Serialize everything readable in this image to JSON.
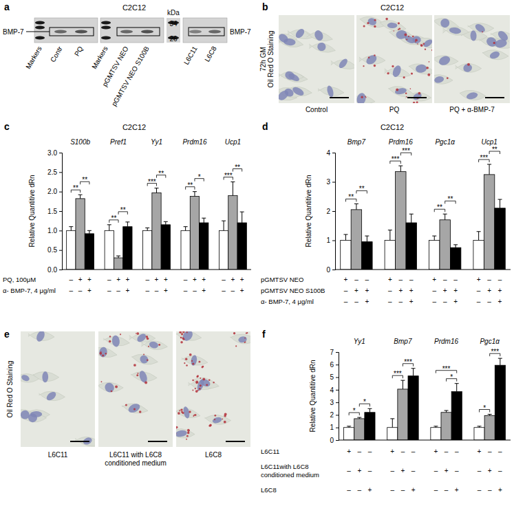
{
  "figure": {
    "panel_labels": [
      "a",
      "b",
      "c",
      "d",
      "e",
      "f"
    ],
    "blot": {
      "title": "C2C12",
      "band_label": "BMP-7",
      "band_label_right": "BMP-7",
      "unit": "kDa",
      "marker_sizes": [
        34,
        26
      ],
      "lanes": [
        [
          "Markers",
          "Contr",
          "PQ"
        ],
        [
          "Markers",
          "pGMTSV NEO",
          "pGMTSV NEO S100B"
        ],
        [
          "L6C11",
          "L6C8"
        ]
      ]
    },
    "micrographs_b": {
      "title": "C2C12",
      "side_label": [
        "72h GM",
        "Oil Red O Staining"
      ],
      "captions": [
        [
          "Control"
        ],
        [
          "PQ"
        ],
        [
          "PQ + α-BMP-7"
        ]
      ]
    },
    "micrographs_e": {
      "side_label": [
        "Oil Red O Staining"
      ],
      "captions": [
        [
          "L6C11"
        ],
        [
          "L6C11 with L6C8",
          "conditioned medium"
        ],
        [
          "L6C8"
        ]
      ]
    }
  },
  "chart_data": [
    {
      "type": "bar",
      "title": "C2C12",
      "ylabel": "Relative Quantitive dRn",
      "categories": [
        "S100b",
        "Pref1",
        "Yy1",
        "Prdm16",
        "Ucp1"
      ],
      "series": [
        {
          "color": "#ffffff",
          "values": [
            1.0,
            1.0,
            1.0,
            1.0,
            1.0
          ],
          "errors": [
            0.1,
            0.15,
            0.07,
            0.1,
            0.25
          ]
        },
        {
          "color": "#a6a6a6",
          "values": [
            1.82,
            0.3,
            1.97,
            1.88,
            1.9
          ],
          "errors": [
            0.1,
            0.05,
            0.12,
            0.12,
            0.35
          ]
        },
        {
          "color": "#000000",
          "values": [
            0.92,
            1.1,
            1.15,
            1.2,
            1.2
          ],
          "errors": [
            0.08,
            0.12,
            0.08,
            0.12,
            0.28
          ]
        }
      ],
      "ylim": [
        0,
        3
      ],
      "yticks": [
        {
          "value": 0,
          "label": "0.0"
        },
        {
          "value": 0.5,
          "label": "0.5"
        },
        {
          "value": 1,
          "label": "1.0"
        },
        {
          "value": 1.5,
          "label": "1.5"
        },
        {
          "value": 2,
          "label": "2.0"
        },
        {
          "value": 2.5,
          "label": "2.5"
        },
        {
          "value": 3,
          "label": "3.0"
        }
      ],
      "grid": false,
      "significance": [
        {
          "category": 0,
          "pair": [
            0,
            1
          ],
          "label": "**"
        },
        {
          "category": 0,
          "pair": [
            1,
            2
          ],
          "label": "**"
        },
        {
          "category": 1,
          "pair": [
            0,
            1
          ],
          "label": "**"
        },
        {
          "category": 1,
          "pair": [
            1,
            2
          ],
          "label": "**"
        },
        {
          "category": 2,
          "pair": [
            0,
            1
          ],
          "label": "***"
        },
        {
          "category": 2,
          "pair": [
            1,
            2
          ],
          "label": "**"
        },
        {
          "category": 3,
          "pair": [
            0,
            1
          ],
          "label": "**"
        },
        {
          "category": 3,
          "pair": [
            1,
            2
          ],
          "label": "*"
        },
        {
          "category": 4,
          "pair": [
            0,
            1
          ],
          "label": "***"
        },
        {
          "category": 4,
          "pair": [
            1,
            2
          ],
          "label": "**"
        }
      ],
      "conditions": [
        {
          "label": [
            "PQ, 100μM"
          ],
          "signs": [
            "–",
            "+",
            "+"
          ]
        },
        {
          "label": [
            "α- BMP-7, 4 μg/ml"
          ],
          "signs": [
            "–",
            "–",
            "+"
          ]
        }
      ]
    },
    {
      "type": "bar",
      "title": "C2C12",
      "ylabel": "Relative Quantitive dRn",
      "categories": [
        "Bmp7",
        "Prdm16",
        "Pgc1α",
        "Ucp1"
      ],
      "series": [
        {
          "color": "#ffffff",
          "values": [
            1.0,
            1.0,
            1.0,
            1.0
          ],
          "errors": [
            0.2,
            0.35,
            0.15,
            0.3
          ]
        },
        {
          "color": "#a6a6a6",
          "values": [
            2.05,
            3.35,
            1.7,
            3.25
          ],
          "errors": [
            0.2,
            0.2,
            0.2,
            0.35
          ]
        },
        {
          "color": "#000000",
          "values": [
            0.95,
            1.6,
            0.75,
            2.1
          ],
          "errors": [
            0.2,
            0.3,
            0.1,
            0.3
          ]
        }
      ],
      "ylim": [
        0,
        4
      ],
      "yticks": [
        0,
        1,
        2,
        3,
        4
      ],
      "grid": false,
      "significance": [
        {
          "category": 0,
          "pair": [
            0,
            1
          ],
          "label": "**"
        },
        {
          "category": 0,
          "pair": [
            1,
            2
          ],
          "label": "**"
        },
        {
          "category": 1,
          "pair": [
            0,
            1
          ],
          "label": "***"
        },
        {
          "category": 1,
          "pair": [
            1,
            2
          ],
          "label": "***"
        },
        {
          "category": 2,
          "pair": [
            0,
            1
          ],
          "label": "**"
        },
        {
          "category": 2,
          "pair": [
            1,
            2
          ],
          "label": "**"
        },
        {
          "category": 3,
          "pair": [
            0,
            1
          ],
          "label": "***"
        },
        {
          "category": 3,
          "pair": [
            1,
            2
          ],
          "label": "**"
        }
      ],
      "conditions": [
        {
          "label": [
            "pGMTSV NEO"
          ],
          "signs": [
            "+",
            "–",
            "–"
          ]
        },
        {
          "label": [
            "pGMTSV NEO S100B"
          ],
          "signs": [
            "–",
            "+",
            "+"
          ]
        },
        {
          "label": [
            "α- BMP-7, 4 μg/ml"
          ],
          "signs": [
            "–",
            "–",
            "+"
          ]
        }
      ]
    },
    {
      "type": "bar",
      "ylabel": "Relative Quantitive dRn",
      "categories": [
        "Yy1",
        "Bmp7",
        "Prdm16",
        "Pgc1α"
      ],
      "series": [
        {
          "color": "#ffffff",
          "values": [
            1.0,
            1.0,
            1.0,
            1.0
          ],
          "errors": [
            0.1,
            0.7,
            0.1,
            0.1
          ]
        },
        {
          "color": "#a6a6a6",
          "values": [
            1.7,
            4.05,
            2.2,
            1.95
          ],
          "errors": [
            0.1,
            0.7,
            0.15,
            0.1
          ]
        },
        {
          "color": "#000000",
          "values": [
            2.2,
            5.1,
            3.85,
            5.95
          ],
          "errors": [
            0.3,
            0.6,
            0.65,
            0.55
          ]
        }
      ],
      "ylim": [
        0,
        7
      ],
      "yticks": [
        0,
        1,
        2,
        3,
        4,
        5,
        6,
        7
      ],
      "grid": false,
      "significance": [
        {
          "category": 0,
          "pair": [
            0,
            1
          ],
          "label": "*"
        },
        {
          "category": 0,
          "pair": [
            1,
            2
          ],
          "label": "*"
        },
        {
          "category": 1,
          "pair": [
            0,
            1
          ],
          "label": "***"
        },
        {
          "category": 1,
          "pair": [
            1,
            2
          ],
          "label": "***"
        },
        {
          "category": 2,
          "pair": [
            1,
            2
          ],
          "label": "*"
        },
        {
          "category": 2,
          "pair": [
            0,
            2
          ],
          "label": "***"
        },
        {
          "category": 3,
          "pair": [
            0,
            1
          ],
          "label": "*"
        },
        {
          "category": 3,
          "pair": [
            1,
            2
          ],
          "label": "***"
        }
      ],
      "conditions": [
        {
          "label": [
            "L6C11"
          ],
          "signs": [
            "+",
            "–",
            "–"
          ]
        },
        {
          "label": [
            "L6C11with L6C8",
            "conditioned medium"
          ],
          "signs": [
            "–",
            "+",
            "–"
          ]
        },
        {
          "label": [
            "L6C8"
          ],
          "signs": [
            "–",
            "–",
            "+"
          ]
        }
      ]
    }
  ]
}
